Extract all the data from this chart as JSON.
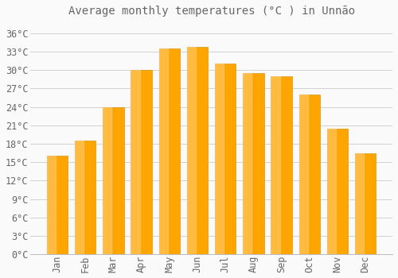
{
  "title": "Average monthly temperatures (°C ) in Unnāo",
  "months": [
    "Jan",
    "Feb",
    "Mar",
    "Apr",
    "May",
    "Jun",
    "Jul",
    "Aug",
    "Sep",
    "Oct",
    "Nov",
    "Dec"
  ],
  "temperatures": [
    16.0,
    18.5,
    24.0,
    30.0,
    33.5,
    33.8,
    31.0,
    29.5,
    29.0,
    26.0,
    20.5,
    16.5
  ],
  "bar_color": "#FFA500",
  "bar_color_light": "#FFD080",
  "bar_edge_color": "#CC8800",
  "background_color": "#FAFAFA",
  "grid_color": "#CCCCCC",
  "text_color": "#666666",
  "yticks": [
    0,
    3,
    6,
    9,
    12,
    15,
    18,
    21,
    24,
    27,
    30,
    33,
    36
  ],
  "ylim": [
    0,
    38
  ],
  "title_fontsize": 10,
  "tick_fontsize": 8.5,
  "bar_width": 0.75
}
